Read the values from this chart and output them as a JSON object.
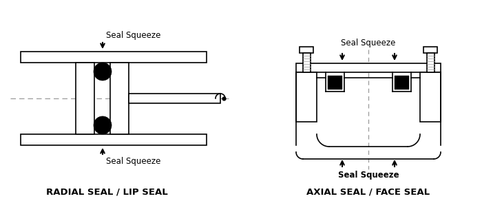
{
  "bg_color": "#ffffff",
  "line_color": "#000000",
  "gray_line": "#999999",
  "black_fill": "#000000",
  "fig_width": 7.0,
  "fig_height": 2.95,
  "label_radial": "RADIAL SEAL / LIP SEAL",
  "label_axial": "AXIAL SEAL / FACE SEAL",
  "label_squeeze": "Seal Squeeze",
  "lw": 1.2
}
